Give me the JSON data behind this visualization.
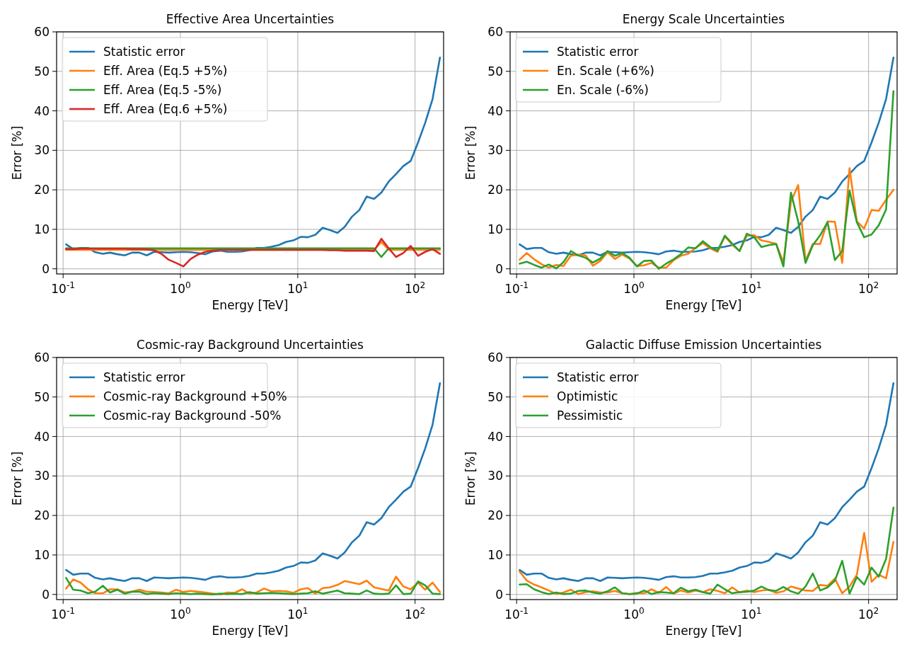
{
  "chart_data": [
    {
      "type": "line",
      "title": "Effective Area Uncertainties",
      "xlabel": "Energy [TeV]",
      "ylabel": "Error [%]",
      "log": "x",
      "grid": true,
      "legend": "top left",
      "line_style": "solid",
      "xlim": [
        0.088,
        175
      ],
      "ylim": [
        -1.3,
        60
      ],
      "xticks": [
        {
          "value": 0.1,
          "label": "10$^{-1}$"
        },
        {
          "value": 1,
          "label": "10$^{0}$"
        },
        {
          "value": 10,
          "label": "10$^{1}$"
        },
        {
          "value": 100,
          "label": "10$^{2}$"
        }
      ],
      "yticks": [
        0,
        10,
        20,
        30,
        40,
        50,
        60
      ],
      "x": [
        0.106,
        0.122,
        0.141,
        0.163,
        0.188,
        0.218,
        0.251,
        0.29,
        0.335,
        0.387,
        0.447,
        0.516,
        0.596,
        0.688,
        0.794,
        0.917,
        1.06,
        1.22,
        1.41,
        1.63,
        1.88,
        2.18,
        2.51,
        2.9,
        3.35,
        3.87,
        4.47,
        5.16,
        5.96,
        6.88,
        7.94,
        9.17,
        10.6,
        12.2,
        14.1,
        16.3,
        18.8,
        21.8,
        25.1,
        29,
        33.5,
        38.7,
        44.7,
        51.6,
        59.6,
        68.8,
        79.4,
        91.7,
        106,
        122,
        141,
        163
      ],
      "series": [
        {
          "name": "Statistic error",
          "color": "#1f77b4",
          "values": [
            6.2,
            5.0,
            5.3,
            5.3,
            4.2,
            3.8,
            4.1,
            3.7,
            3.4,
            4.1,
            4.1,
            3.4,
            4.3,
            4.2,
            4.1,
            4.2,
            4.3,
            4.2,
            4.0,
            3.7,
            4.4,
            4.6,
            4.3,
            4.3,
            4.4,
            4.7,
            5.3,
            5.3,
            5.6,
            6.0,
            6.8,
            7.2,
            8.1,
            8.0,
            8.6,
            10.4,
            9.8,
            9.1,
            10.6,
            13.2,
            14.9,
            18.3,
            17.7,
            19.3,
            22.1,
            24.0,
            26.0,
            27.3,
            32.0,
            37.0,
            43.0,
            53.5
          ]
        },
        {
          "name": "Eff. Area (Eq.5 +5%)",
          "color": "#ff7f0e",
          "values": [
            4.8,
            4.8,
            4.8,
            4.8,
            4.8,
            4.8,
            4.8,
            4.8,
            4.8,
            4.8,
            4.8,
            4.8,
            4.8,
            4.8,
            4.8,
            4.8,
            4.8,
            4.8,
            4.8,
            4.8,
            4.8,
            4.8,
            4.8,
            4.8,
            4.8,
            4.8,
            4.8,
            4.8,
            4.8,
            4.8,
            4.8,
            4.8,
            4.8,
            4.8,
            4.8,
            4.8,
            4.8,
            4.8,
            4.8,
            4.8,
            4.8,
            4.8,
            4.8,
            6.8,
            4.8,
            4.8,
            4.8,
            4.8,
            4.8,
            4.8,
            4.8,
            4.8
          ]
        },
        {
          "name": "Eff. Area (Eq.5 -5%)",
          "color": "#2ca02c",
          "values": [
            5.2,
            5.2,
            5.2,
            5.2,
            5.2,
            5.2,
            5.2,
            5.2,
            5.2,
            5.2,
            5.2,
            5.2,
            5.2,
            5.2,
            5.2,
            5.2,
            5.2,
            5.2,
            5.2,
            5.2,
            5.2,
            5.2,
            5.2,
            5.2,
            5.2,
            5.2,
            5.2,
            5.2,
            5.2,
            5.2,
            5.2,
            5.2,
            5.2,
            5.2,
            5.2,
            5.2,
            5.2,
            5.2,
            5.2,
            5.2,
            5.2,
            5.2,
            5.2,
            3.0,
            5.2,
            5.2,
            5.2,
            5.2,
            5.2,
            5.2,
            5.2,
            5.2
          ]
        },
        {
          "name": "Eff. Area (Eq.6 +5%)",
          "color": "#d62728",
          "values": [
            5.0,
            5.0,
            5.1,
            5.1,
            5.1,
            5.1,
            5.1,
            5.1,
            5.1,
            5.0,
            5.0,
            4.9,
            4.7,
            3.8,
            2.3,
            1.5,
            0.6,
            2.5,
            3.6,
            4.3,
            4.6,
            4.8,
            4.8,
            4.8,
            4.8,
            4.8,
            4.8,
            4.8,
            4.8,
            4.8,
            4.8,
            4.8,
            4.8,
            4.8,
            4.8,
            4.8,
            4.7,
            4.7,
            4.6,
            4.6,
            4.6,
            4.6,
            4.5,
            7.6,
            5.2,
            3.0,
            4.0,
            5.8,
            3.3,
            4.3,
            5.0,
            3.8
          ]
        }
      ]
    },
    {
      "type": "line",
      "title": "Energy Scale Uncertainties",
      "xlabel": "Energy [TeV]",
      "ylabel": "Error [%]",
      "log": "x",
      "grid": true,
      "legend": "top left",
      "line_style": "solid",
      "xlim": [
        0.088,
        175
      ],
      "ylim": [
        -1.3,
        60
      ],
      "xticks": [
        {
          "value": 0.1,
          "label": "10$^{-1}$"
        },
        {
          "value": 1,
          "label": "10$^{0}$"
        },
        {
          "value": 10,
          "label": "10$^{1}$"
        },
        {
          "value": 100,
          "label": "10$^{2}$"
        }
      ],
      "yticks": [
        0,
        10,
        20,
        30,
        40,
        50,
        60
      ],
      "x": [
        0.106,
        0.122,
        0.141,
        0.163,
        0.188,
        0.218,
        0.251,
        0.29,
        0.335,
        0.387,
        0.447,
        0.516,
        0.596,
        0.688,
        0.794,
        0.917,
        1.06,
        1.22,
        1.41,
        1.63,
        1.88,
        2.18,
        2.51,
        2.9,
        3.35,
        3.87,
        4.47,
        5.16,
        5.96,
        6.88,
        7.94,
        9.17,
        10.6,
        12.2,
        14.1,
        16.3,
        18.8,
        21.8,
        25.1,
        29,
        33.5,
        38.7,
        44.7,
        51.6,
        59.6,
        68.8,
        79.4,
        91.7,
        106,
        122,
        141,
        163
      ],
      "series": [
        {
          "name": "Statistic error",
          "color": "#1f77b4",
          "values": [
            6.2,
            5.0,
            5.3,
            5.3,
            4.2,
            3.8,
            4.1,
            3.7,
            3.4,
            4.1,
            4.1,
            3.4,
            4.3,
            4.2,
            4.1,
            4.2,
            4.3,
            4.2,
            4.0,
            3.7,
            4.4,
            4.6,
            4.3,
            4.3,
            4.4,
            4.7,
            5.3,
            5.3,
            5.6,
            6.0,
            6.8,
            7.2,
            8.1,
            8.0,
            8.6,
            10.4,
            9.8,
            9.1,
            10.6,
            13.2,
            14.9,
            18.3,
            17.7,
            19.3,
            22.1,
            24.0,
            26.0,
            27.3,
            32.0,
            37.0,
            43.0,
            53.5
          ]
        },
        {
          "name": "En. Scale (+6%)",
          "color": "#ff7f0e",
          "values": [
            2.3,
            4.0,
            2.4,
            1.2,
            0.3,
            1.0,
            0.7,
            3.3,
            3.6,
            3.4,
            0.8,
            2.0,
            4.2,
            2.5,
            3.6,
            2.6,
            0.7,
            0.9,
            1.5,
            0.3,
            0.3,
            2.2,
            3.3,
            3.8,
            5.3,
            6.5,
            5.2,
            4.3,
            8.2,
            6.1,
            4.5,
            8.4,
            8.5,
            7.2,
            6.8,
            6.3,
            1.6,
            17.0,
            21.2,
            2.0,
            6.3,
            6.3,
            12.0,
            11.9,
            1.5,
            25.5,
            12.0,
            10.2,
            14.9,
            14.7,
            17.5,
            20.0
          ]
        },
        {
          "name": "En. Scale (-6%)",
          "color": "#2ca02c",
          "values": [
            1.3,
            1.8,
            1.0,
            0.3,
            1.1,
            0.1,
            1.7,
            4.5,
            3.4,
            2.8,
            1.6,
            2.6,
            4.5,
            3.3,
            4.0,
            2.8,
            0.6,
            2.0,
            2.1,
            0.0,
            1.3,
            2.4,
            3.7,
            5.4,
            5.2,
            7.0,
            5.5,
            4.6,
            8.4,
            6.4,
            4.5,
            8.9,
            8.0,
            5.5,
            6.0,
            6.3,
            0.6,
            19.3,
            12.0,
            1.5,
            6.0,
            8.5,
            11.8,
            2.2,
            4.5,
            19.8,
            11.8,
            8.0,
            8.7,
            11.0,
            15.0,
            45.0
          ]
        }
      ]
    },
    {
      "type": "line",
      "title": "Cosmic-ray Background Uncertainties",
      "xlabel": "Energy [TeV]",
      "ylabel": "Error [%]",
      "log": "x",
      "grid": true,
      "legend": "top left",
      "line_style": "solid",
      "xlim": [
        0.088,
        175
      ],
      "ylim": [
        -1.3,
        60
      ],
      "xticks": [
        {
          "value": 0.1,
          "label": "10$^{-1}$"
        },
        {
          "value": 1,
          "label": "10$^{0}$"
        },
        {
          "value": 10,
          "label": "10$^{1}$"
        },
        {
          "value": 100,
          "label": "10$^{2}$"
        }
      ],
      "yticks": [
        0,
        10,
        20,
        30,
        40,
        50,
        60
      ],
      "x": [
        0.106,
        0.122,
        0.141,
        0.163,
        0.188,
        0.218,
        0.251,
        0.29,
        0.335,
        0.387,
        0.447,
        0.516,
        0.596,
        0.688,
        0.794,
        0.917,
        1.06,
        1.22,
        1.41,
        1.63,
        1.88,
        2.18,
        2.51,
        2.9,
        3.35,
        3.87,
        4.47,
        5.16,
        5.96,
        6.88,
        7.94,
        9.17,
        10.6,
        12.2,
        14.1,
        16.3,
        18.8,
        21.8,
        25.1,
        29,
        33.5,
        38.7,
        44.7,
        51.6,
        59.6,
        68.8,
        79.4,
        91.7,
        106,
        122,
        141,
        163
      ],
      "series": [
        {
          "name": "Statistic error",
          "color": "#1f77b4",
          "values": [
            6.2,
            5.0,
            5.3,
            5.3,
            4.2,
            3.8,
            4.1,
            3.7,
            3.4,
            4.1,
            4.1,
            3.4,
            4.3,
            4.2,
            4.1,
            4.2,
            4.3,
            4.2,
            4.0,
            3.7,
            4.4,
            4.6,
            4.3,
            4.3,
            4.4,
            4.7,
            5.3,
            5.3,
            5.6,
            6.0,
            6.8,
            7.2,
            8.1,
            8.0,
            8.6,
            10.4,
            9.8,
            9.1,
            10.6,
            13.2,
            14.9,
            18.3,
            17.7,
            19.3,
            22.1,
            24.0,
            26.0,
            27.3,
            32.0,
            37.0,
            43.0,
            53.5
          ]
        },
        {
          "name": "Cosmic-ray Background +50%",
          "color": "#ff7f0e",
          "values": [
            1.5,
            3.8,
            3.0,
            1.3,
            0.3,
            0.3,
            1.3,
            1.3,
            0.5,
            0.7,
            1.2,
            0.7,
            0.6,
            0.5,
            0.3,
            1.2,
            0.6,
            0.9,
            0.7,
            0.5,
            0.2,
            0.0,
            0.5,
            0.4,
            1.3,
            0.2,
            0.5,
            1.5,
            0.8,
            0.9,
            0.8,
            0.4,
            1.3,
            1.6,
            0.2,
            1.6,
            1.8,
            2.4,
            3.4,
            3.0,
            2.6,
            3.5,
            1.8,
            1.4,
            1.0,
            4.5,
            2.0,
            1.3,
            3.0,
            1.2,
            3.0,
            0.6
          ]
        },
        {
          "name": "Cosmic-ray Background -50%",
          "color": "#2ca02c",
          "values": [
            4.2,
            1.2,
            1.0,
            0.3,
            0.7,
            2.2,
            0.5,
            1.2,
            0.2,
            0.7,
            0.7,
            0.1,
            0.3,
            0.2,
            0.1,
            0.3,
            0.2,
            0.1,
            0.2,
            0.1,
            0.0,
            0.2,
            0.1,
            0.2,
            0.1,
            0.6,
            0.2,
            0.3,
            0.4,
            0.3,
            0.2,
            0.1,
            0.2,
            0.3,
            0.8,
            0.2,
            0.6,
            1.0,
            0.3,
            0.2,
            0.1,
            1.0,
            0.2,
            0.1,
            0.2,
            2.3,
            0.1,
            0.2,
            3.3,
            2.3,
            0.2,
            0.1
          ]
        }
      ]
    },
    {
      "type": "line",
      "title": "Galactic Diffuse Emission Uncertainties",
      "xlabel": "Energy [TeV]",
      "ylabel": "Error [%]",
      "log": "x",
      "grid": true,
      "legend": "top left",
      "line_style": "solid",
      "xlim": [
        0.088,
        175
      ],
      "ylim": [
        -1.3,
        60
      ],
      "xticks": [
        {
          "value": 0.1,
          "label": "10$^{-1}$"
        },
        {
          "value": 1,
          "label": "10$^{0}$"
        },
        {
          "value": 10,
          "label": "10$^{1}$"
        },
        {
          "value": 100,
          "label": "10$^{2}$"
        }
      ],
      "yticks": [
        0,
        10,
        20,
        30,
        40,
        50,
        60
      ],
      "x": [
        0.106,
        0.122,
        0.141,
        0.163,
        0.188,
        0.218,
        0.251,
        0.29,
        0.335,
        0.387,
        0.447,
        0.516,
        0.596,
        0.688,
        0.794,
        0.917,
        1.06,
        1.22,
        1.41,
        1.63,
        1.88,
        2.18,
        2.51,
        2.9,
        3.35,
        3.87,
        4.47,
        5.16,
        5.96,
        6.88,
        7.94,
        9.17,
        10.6,
        12.2,
        14.1,
        16.3,
        18.8,
        21.8,
        25.1,
        29,
        33.5,
        38.7,
        44.7,
        51.6,
        59.6,
        68.8,
        79.4,
        91.7,
        106,
        122,
        141,
        163
      ],
      "series": [
        {
          "name": "Statistic error",
          "color": "#1f77b4",
          "values": [
            6.2,
            5.0,
            5.3,
            5.3,
            4.2,
            3.8,
            4.1,
            3.7,
            3.4,
            4.1,
            4.1,
            3.4,
            4.3,
            4.2,
            4.1,
            4.2,
            4.3,
            4.2,
            4.0,
            3.7,
            4.4,
            4.6,
            4.3,
            4.3,
            4.4,
            4.7,
            5.3,
            5.3,
            5.6,
            6.0,
            6.8,
            7.2,
            8.1,
            8.0,
            8.6,
            10.4,
            9.8,
            9.1,
            10.6,
            13.2,
            14.9,
            18.3,
            17.7,
            19.3,
            22.1,
            24.0,
            26.0,
            27.3,
            32.0,
            37.0,
            43.0,
            53.5
          ]
        },
        {
          "name": "Optimistic",
          "color": "#ff7f0e",
          "values": [
            5.8,
            3.5,
            2.5,
            1.8,
            1.0,
            0.1,
            0.5,
            1.2,
            0.1,
            0.6,
            0.8,
            0.5,
            0.5,
            0.9,
            0.3,
            0.1,
            0.4,
            0.3,
            1.3,
            0.4,
            1.9,
            0.2,
            1.0,
            0.5,
            1.0,
            0.6,
            1.3,
            0.9,
            0.3,
            1.8,
            0.5,
            1.0,
            0.6,
            1.0,
            1.2,
            0.4,
            0.8,
            2.0,
            1.5,
            1.0,
            0.9,
            2.4,
            2.2,
            4.0,
            0.3,
            2.0,
            5.0,
            15.6,
            3.2,
            5.0,
            4.1,
            13.3
          ]
        },
        {
          "name": "Pessimistic",
          "color": "#2ca02c",
          "values": [
            2.5,
            2.6,
            1.3,
            0.6,
            0.1,
            0.5,
            0.1,
            0.2,
            0.9,
            1.0,
            0.5,
            0.2,
            0.8,
            1.8,
            0.3,
            0.1,
            0.2,
            1.0,
            0.1,
            0.6,
            0.5,
            0.3,
            1.7,
            0.8,
            1.2,
            0.6,
            0.2,
            2.5,
            1.3,
            0.3,
            0.6,
            0.7,
            1.0,
            2.0,
            1.1,
            0.9,
            1.9,
            0.8,
            0.2,
            2.0,
            5.3,
            1.0,
            1.8,
            3.5,
            8.5,
            0.2,
            4.4,
            2.5,
            6.8,
            4.5,
            9.0,
            22.0
          ]
        }
      ]
    }
  ]
}
